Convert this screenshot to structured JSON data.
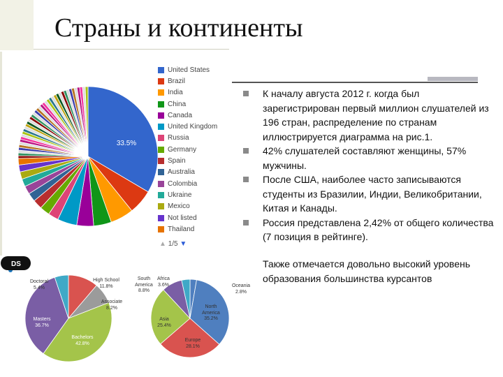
{
  "slide": {
    "title": "Страны и континенты"
  },
  "bullets": [
    "К началу августа 2012 г. когда был зарегистрирован первый миллион слушателей из 196 стран, распределение по странам иллюстрируется диаграмма на рис.1.",
    "42% слушателей составляют женщины, 57% мужчины.",
    "После США, наиболее часто записываются студенты из Бразилии, Индии, Великобритании, Китая и Канады.",
    "Россия представлена 2,42% от общего количества (7 позиция в рейтинге)."
  ],
  "paragraph": "Также отмечается довольно высокий уровень образования большинства курсантов",
  "country_chart": {
    "big_slice_label": "33.5%",
    "legend": [
      {
        "name": "United States",
        "color": "#3366cc"
      },
      {
        "name": "Brazil",
        "color": "#dc3912"
      },
      {
        "name": "India",
        "color": "#ff9900"
      },
      {
        "name": "China",
        "color": "#109618"
      },
      {
        "name": "Canada",
        "color": "#990099"
      },
      {
        "name": "United Kingdom",
        "color": "#0099c6"
      },
      {
        "name": "Russia",
        "color": "#dd4477"
      },
      {
        "name": "Germany",
        "color": "#66aa00"
      },
      {
        "name": "Spain",
        "color": "#b82e2e"
      },
      {
        "name": "Australia",
        "color": "#316395"
      },
      {
        "name": "Colombia",
        "color": "#994499"
      },
      {
        "name": "Ukraine",
        "color": "#22aa99"
      },
      {
        "name": "Mexico",
        "color": "#aaaa11"
      },
      {
        "name": "Not listed",
        "color": "#6633cc"
      },
      {
        "name": "Thailand",
        "color": "#e67300"
      }
    ],
    "pager": "1/5",
    "first_values": [
      33.5,
      5.7,
      5.4,
      4.1,
      3.9,
      4.5,
      2.42,
      2.3,
      2.2,
      2.0,
      1.9,
      1.8,
      1.7,
      1.6,
      1.5
    ],
    "extra_colors": [
      "#8b0707",
      "#329262",
      "#5574a6",
      "#3b3eac",
      "#b77322",
      "#16d620",
      "#b91383",
      "#f4359e",
      "#9c5935",
      "#a9c413",
      "#2a778d",
      "#668d1c",
      "#bea413",
      "#0c5922",
      "#743411"
    ],
    "rest_color": "#dddddd"
  },
  "education_chart": {
    "slices": [
      {
        "label": "High School",
        "value_label": "11.8%",
        "value": 11.8,
        "color": "#d9534f"
      },
      {
        "label": "Associate",
        "value_label": "8.2%",
        "value": 8.2,
        "color": "#9b9b9b"
      },
      {
        "label": "Bachelors",
        "value_label": "42.8%",
        "value": 42.8,
        "color": "#a4c44a"
      },
      {
        "label": "Masters",
        "value_label": "36.7%",
        "value": 36.7,
        "color": "#7a5ea5"
      },
      {
        "label": "Doctoral",
        "value_label": "5.4%",
        "value": 5.4,
        "color": "#3fa9c7"
      }
    ]
  },
  "continent_chart": {
    "slices": [
      {
        "label": "Oceania",
        "value_label": "2.8%",
        "value": 2.8,
        "color": "#4f7fbf"
      },
      {
        "label": "North America",
        "value_label": "35.2%",
        "value": 35.2,
        "color": "#4f7fbf"
      },
      {
        "label": "Europe",
        "value_label": "28.1%",
        "value": 28.1,
        "color": "#d9534f"
      },
      {
        "label": "Asia",
        "value_label": "25.4%",
        "value": 25.4,
        "color": "#a4c44a"
      },
      {
        "label": "South America",
        "value_label": "8.8%",
        "value": 8.8,
        "color": "#7a5ea5"
      },
      {
        "label": "Africa",
        "value_label": "3.6%",
        "value": 3.6,
        "color": "#3fa9c7"
      }
    ],
    "logo": "DS"
  }
}
